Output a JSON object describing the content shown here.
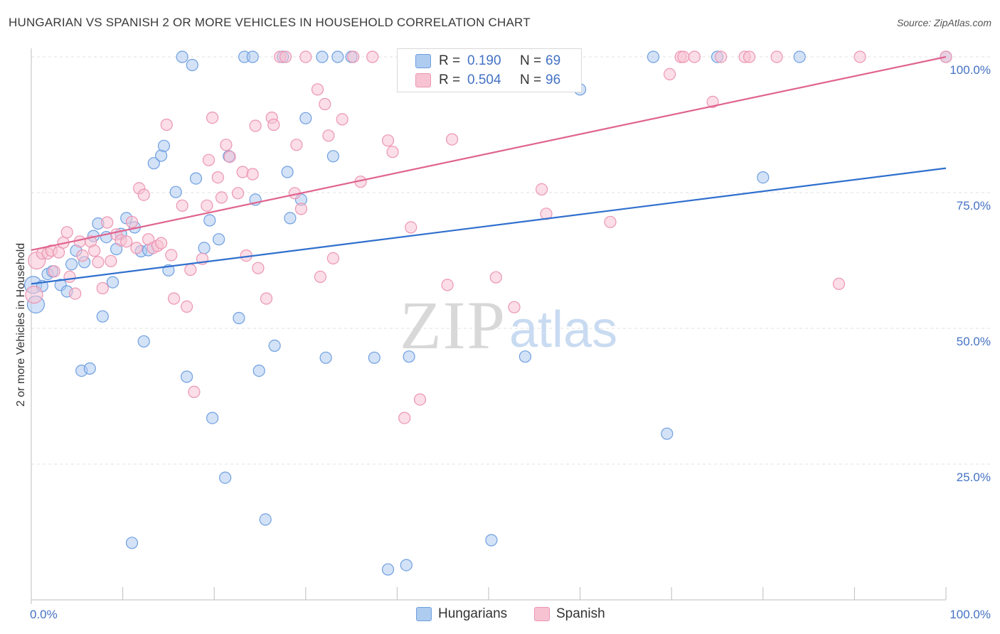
{
  "header": {
    "title": "HUNGARIAN VS SPANISH 2 OR MORE VEHICLES IN HOUSEHOLD CORRELATION CHART",
    "source": "Source: ZipAtlas.com"
  },
  "watermark": {
    "zip": "ZIP",
    "atlas": "atlas"
  },
  "stats_legend": {
    "rows": [
      {
        "series": "Hungarians",
        "r_label": "R =",
        "r_value": "0.190",
        "n_label": "N =",
        "n_value": "69"
      },
      {
        "series": "Spanish",
        "r_label": "R =",
        "r_value": "0.504",
        "n_label": "N =",
        "n_value": "96"
      }
    ]
  },
  "colors": {
    "hungarians_fill": "#aecbf0",
    "hungarians_stroke": "#6f9fe0",
    "hungarians_line": "#2f6fce",
    "spanish_fill": "#f7c3d3",
    "spanish_stroke": "#ec95b2",
    "spanish_line": "#e0638f",
    "grid": "#e0e0e0",
    "axis_label": "#4472c4"
  },
  "chart_data": {
    "type": "scatter",
    "title": "HUNGARIAN VS SPANISH 2 OR MORE VEHICLES IN HOUSEHOLD CORRELATION CHART",
    "xlabel": "",
    "ylabel": "2 or more Vehicles in Household",
    "xlim": [
      0,
      100
    ],
    "ylim": [
      0,
      102
    ],
    "x_tick_labels": [
      "0.0%",
      "100.0%"
    ],
    "y_tick_labels": [
      "25.0%",
      "50.0%",
      "75.0%",
      "100.0%"
    ],
    "y_ticks": [
      25,
      50,
      75,
      100
    ],
    "grid": true,
    "legend": "bottom-center",
    "series": [
      {
        "name": "Hungarians",
        "trend": {
          "x": [
            0,
            100
          ],
          "y": [
            58.2,
            79.5
          ]
        },
        "points": [
          [
            0.2,
            58.0
          ],
          [
            0.5,
            54.4
          ],
          [
            1.2,
            57.8
          ],
          [
            1.8,
            60.0
          ],
          [
            2.3,
            60.5
          ],
          [
            3.2,
            58.0
          ],
          [
            3.9,
            56.8
          ],
          [
            4.4,
            61.8
          ],
          [
            4.9,
            64.3
          ],
          [
            5.5,
            42.2
          ],
          [
            5.8,
            62.2
          ],
          [
            6.4,
            42.6
          ],
          [
            6.8,
            67.0
          ],
          [
            7.3,
            69.3
          ],
          [
            7.8,
            52.2
          ],
          [
            8.2,
            66.8
          ],
          [
            8.9,
            58.5
          ],
          [
            9.3,
            64.6
          ],
          [
            9.8,
            67.4
          ],
          [
            10.4,
            70.3
          ],
          [
            11.0,
            10.5
          ],
          [
            11.3,
            68.6
          ],
          [
            12.0,
            64.2
          ],
          [
            12.3,
            47.6
          ],
          [
            12.8,
            64.4
          ],
          [
            13.4,
            80.4
          ],
          [
            14.2,
            81.8
          ],
          [
            14.5,
            83.6
          ],
          [
            15.0,
            60.7
          ],
          [
            15.8,
            75.1
          ],
          [
            16.5,
            100.0
          ],
          [
            17.0,
            41.1
          ],
          [
            17.6,
            98.5
          ],
          [
            18.0,
            77.6
          ],
          [
            18.9,
            64.8
          ],
          [
            19.5,
            69.9
          ],
          [
            19.8,
            33.5
          ],
          [
            20.5,
            66.4
          ],
          [
            21.2,
            22.5
          ],
          [
            21.6,
            81.7
          ],
          [
            22.7,
            51.9
          ],
          [
            23.3,
            100.0
          ],
          [
            24.2,
            100.0
          ],
          [
            24.5,
            73.7
          ],
          [
            24.9,
            42.2
          ],
          [
            25.6,
            14.8
          ],
          [
            26.6,
            46.8
          ],
          [
            27.5,
            100.0
          ],
          [
            28.0,
            78.8
          ],
          [
            28.3,
            70.3
          ],
          [
            29.5,
            73.7
          ],
          [
            30.0,
            88.7
          ],
          [
            31.8,
            100.0
          ],
          [
            32.2,
            44.6
          ],
          [
            33.0,
            81.7
          ],
          [
            33.5,
            100.0
          ],
          [
            35.0,
            100.0
          ],
          [
            37.5,
            44.6
          ],
          [
            39.0,
            5.6
          ],
          [
            41.0,
            6.4
          ],
          [
            41.3,
            44.8
          ],
          [
            50.3,
            11.0
          ],
          [
            54.0,
            44.8
          ],
          [
            60.0,
            94.0
          ],
          [
            68.0,
            100.0
          ],
          [
            69.5,
            30.6
          ],
          [
            75.0,
            100.0
          ],
          [
            80.0,
            77.8
          ],
          [
            84.0,
            100.0
          ],
          [
            100.0,
            100.0
          ]
        ]
      },
      {
        "name": "Spanish",
        "trend": {
          "x": [
            0,
            100
          ],
          "y": [
            64.4,
            100.0
          ]
        },
        "points": [
          [
            0.3,
            56.2
          ],
          [
            0.6,
            62.5
          ],
          [
            1.2,
            63.8
          ],
          [
            1.8,
            63.8
          ],
          [
            2.2,
            64.3
          ],
          [
            2.5,
            60.5
          ],
          [
            3.0,
            64.0
          ],
          [
            3.5,
            65.8
          ],
          [
            3.9,
            67.7
          ],
          [
            4.2,
            59.5
          ],
          [
            4.8,
            56.4
          ],
          [
            5.3,
            66.0
          ],
          [
            5.6,
            63.4
          ],
          [
            6.5,
            66.0
          ],
          [
            6.9,
            64.3
          ],
          [
            7.3,
            62.2
          ],
          [
            7.8,
            57.4
          ],
          [
            8.3,
            69.5
          ],
          [
            8.7,
            62.4
          ],
          [
            9.3,
            67.3
          ],
          [
            9.8,
            66.2
          ],
          [
            10.4,
            66.0
          ],
          [
            11.0,
            69.6
          ],
          [
            11.5,
            64.8
          ],
          [
            11.8,
            75.8
          ],
          [
            12.3,
            74.6
          ],
          [
            12.8,
            66.4
          ],
          [
            13.3,
            64.8
          ],
          [
            13.8,
            65.2
          ],
          [
            14.2,
            65.7
          ],
          [
            14.8,
            87.5
          ],
          [
            15.3,
            63.5
          ],
          [
            15.6,
            55.5
          ],
          [
            16.5,
            72.6
          ],
          [
            17.0,
            54.0
          ],
          [
            17.4,
            60.8
          ],
          [
            17.8,
            38.3
          ],
          [
            18.7,
            62.8
          ],
          [
            19.2,
            72.6
          ],
          [
            19.4,
            81.0
          ],
          [
            19.8,
            88.8
          ],
          [
            20.4,
            77.8
          ],
          [
            20.8,
            74.1
          ],
          [
            21.3,
            83.8
          ],
          [
            21.7,
            81.6
          ],
          [
            22.6,
            74.9
          ],
          [
            23.1,
            78.8
          ],
          [
            23.5,
            63.4
          ],
          [
            24.2,
            78.4
          ],
          [
            24.5,
            87.3
          ],
          [
            24.8,
            61.1
          ],
          [
            25.7,
            55.5
          ],
          [
            26.3,
            88.8
          ],
          [
            26.5,
            87.5
          ],
          [
            27.2,
            100.0
          ],
          [
            27.8,
            100.0
          ],
          [
            28.8,
            74.9
          ],
          [
            29.0,
            83.8
          ],
          [
            29.5,
            72.0
          ],
          [
            30.0,
            100.0
          ],
          [
            31.3,
            94.0
          ],
          [
            31.6,
            59.5
          ],
          [
            32.1,
            91.3
          ],
          [
            32.5,
            85.5
          ],
          [
            33.0,
            62.9
          ],
          [
            34.0,
            88.5
          ],
          [
            35.2,
            100.0
          ],
          [
            36.0,
            77.0
          ],
          [
            37.3,
            100.0
          ],
          [
            39.0,
            84.6
          ],
          [
            39.5,
            82.5
          ],
          [
            40.8,
            33.5
          ],
          [
            41.5,
            68.6
          ],
          [
            42.5,
            36.9
          ],
          [
            44.8,
            100.0
          ],
          [
            45.5,
            58.0
          ],
          [
            46.0,
            84.8
          ],
          [
            50.8,
            59.4
          ],
          [
            52.8,
            53.9
          ],
          [
            55.6,
            100.0
          ],
          [
            55.8,
            75.6
          ],
          [
            56.3,
            71.1
          ],
          [
            57.2,
            100.0
          ],
          [
            63.3,
            69.6
          ],
          [
            69.8,
            96.8
          ],
          [
            71.0,
            100.0
          ],
          [
            71.3,
            100.0
          ],
          [
            72.5,
            100.0
          ],
          [
            74.5,
            91.7
          ],
          [
            75.4,
            100.0
          ],
          [
            78.0,
            100.0
          ],
          [
            78.5,
            100.0
          ],
          [
            81.5,
            100.0
          ],
          [
            88.3,
            58.2
          ],
          [
            90.6,
            100.0
          ],
          [
            100.0,
            100.0
          ]
        ]
      }
    ]
  },
  "bottom_legend": {
    "items": [
      {
        "label": "Hungarians"
      },
      {
        "label": "Spanish"
      }
    ]
  }
}
